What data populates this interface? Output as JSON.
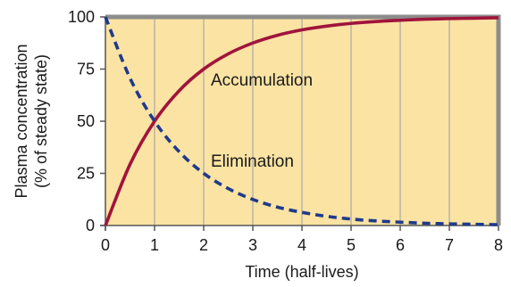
{
  "chart_data": {
    "type": "line",
    "xlabel": "Time (half-lives)",
    "ylabel": [
      "Plasma concentration",
      "(% of steady state)"
    ],
    "xlim": [
      0,
      8
    ],
    "ylim": [
      0,
      100
    ],
    "x_ticks": [
      "0",
      "1",
      "2",
      "3",
      "4",
      "5",
      "6",
      "7",
      "8"
    ],
    "y_ticks": [
      "0",
      "25",
      "50",
      "75",
      "100"
    ],
    "grid": "vertical lines at each half-life",
    "background_color": "#fbe3a3",
    "grid_color": "#a8a8a8",
    "frame_color": "#8c8c8c",
    "series": [
      {
        "name": "Accumulation",
        "style": "solid",
        "color": "#a0143c",
        "x": [
          0,
          0.5,
          1,
          1.5,
          2,
          2.5,
          3,
          3.5,
          4,
          4.5,
          5,
          5.5,
          6,
          6.5,
          7,
          7.5,
          8
        ],
        "y": [
          0,
          29.3,
          50,
          64.6,
          75,
          82.3,
          87.5,
          91.2,
          93.8,
          95.6,
          96.9,
          97.8,
          98.4,
          98.9,
          99.2,
          99.4,
          99.6
        ]
      },
      {
        "name": "Elimination",
        "style": "dashed",
        "color": "#1f3a8a",
        "x": [
          0,
          0.5,
          1,
          1.5,
          2,
          2.5,
          3,
          3.5,
          4,
          4.5,
          5,
          5.5,
          6,
          6.5,
          7,
          7.5,
          8
        ],
        "y": [
          100,
          70.7,
          50,
          35.4,
          25,
          17.7,
          12.5,
          8.8,
          6.3,
          4.4,
          3.1,
          2.2,
          1.6,
          1.1,
          0.8,
          0.6,
          0.4
        ]
      }
    ],
    "annotations": [
      {
        "text": "Accumulation",
        "series": "Accumulation"
      },
      {
        "text": "Elimination",
        "series": "Elimination"
      }
    ]
  }
}
